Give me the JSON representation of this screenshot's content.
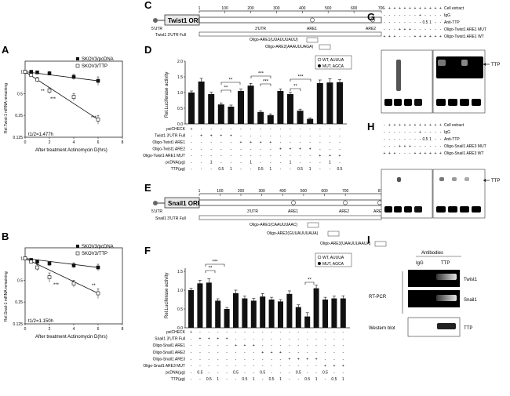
{
  "panels": {
    "A": {
      "letter": "A",
      "ylabel": "Rel.Twist-1 mRNA remaining",
      "xlabel": "After treatment Actinomycin D(hrs)",
      "legend": [
        "SKOV3/pcDNA",
        "SKOV3/TTP"
      ],
      "half_life": "t1/2=1.477h",
      "yticks": [
        "1",
        "0.5",
        "0.25",
        "0.125"
      ],
      "xticks": [
        "0",
        "2",
        "4",
        "6",
        "8"
      ],
      "stars": [
        "**",
        "***",
        "***"
      ]
    },
    "B": {
      "letter": "B",
      "ylabel": "Rel.Snail-1 mRNA remaining",
      "xlabel": "After treatment Actinomycin D(hrs)",
      "legend": [
        "SKOV3/pcDNA",
        "SKOV3/TTP"
      ],
      "half_life": "t1/2=1.150h",
      "yticks": [
        "1",
        "0.5",
        "0.25",
        "0.125"
      ],
      "xticks": [
        "0",
        "2",
        "4",
        "6",
        "8"
      ],
      "stars": [
        "***",
        "**"
      ]
    },
    "C": {
      "letter": "C",
      "orf": "Twist1 ORF",
      "five_utr": "5'UTR",
      "three_utr": "3'UTR",
      "scale": [
        "1",
        "100",
        "200",
        "300",
        "400",
        "500",
        "600",
        "706"
      ],
      "ares": [
        "ARE1",
        "ARE2"
      ],
      "full_label": "Twist1 3'UTR Full",
      "oligos": [
        "Oligo-ARE1(UUAUUUAUU)",
        "Oligo-ARE2(AAAUUUAGA)"
      ]
    },
    "D": {
      "letter": "D",
      "ylabel": "Rel.Luciferase activity",
      "legend": [
        "WT, AUUUA",
        "MUT, AGCA"
      ],
      "yticks": [
        "0.0",
        "0.5",
        "1.0",
        "1.5",
        "2.0"
      ],
      "row_labels": [
        "psiCHECK",
        "Twist1 3'UTR Full",
        "Oligo-Twist1 ARE1",
        "Oligo-Twist1 ARE2",
        "Oligo-Twist1 ARE1 MUT",
        "pcDNA(μg)",
        "TTP(μg)"
      ],
      "stars": [
        "**",
        "**",
        "***",
        "***",
        "**",
        "***"
      ]
    },
    "E": {
      "letter": "E",
      "orf": "Snail1 ORF",
      "five_utr": "5'UTR",
      "three_utr": "3'UTR",
      "scale": [
        "1",
        "100",
        "200",
        "300",
        "400",
        "500",
        "600",
        "700",
        "872"
      ],
      "ares": [
        "ARE1",
        "ARE2",
        "ARE3"
      ],
      "full_label": "Snail1 3'UTR Full",
      "oligos": [
        "Oligo-ARE1(CAAUUUAAC)",
        "Oligo-ARE2(GUUAUUUAUA)",
        "Oligo-ARE3(UAAUUUAAUA)"
      ]
    },
    "F": {
      "letter": "F",
      "ylabel": "Rel.Luciferase activity",
      "legend": [
        "WT, AUUUA",
        "MUT, AGCA"
      ],
      "yticks": [
        "0.0",
        "0.5",
        "1.0",
        "1.5"
      ],
      "row_labels": [
        "psiCHECK",
        "Snail1 3'UTR Full",
        "Oligo-Snail1 ARE1",
        "Oligo-Snail1 ARE2",
        "Oligo-Snail1 ARE3",
        "Oligo-Snail1 ARE3 MUT",
        "pcDNA(μg)",
        "TTP(μg)"
      ],
      "stars": [
        "**",
        "***",
        "**"
      ]
    },
    "G": {
      "letter": "G",
      "row_labels": [
        "Cell extract",
        "IgG",
        "Anti-TTP",
        "Oligo-Twist1 ARE1 MUT",
        "Oligo-Twist1 ARE1 WT"
      ],
      "doses": [
        "0.5",
        "1"
      ],
      "band_label": "TTP"
    },
    "H": {
      "letter": "H",
      "row_labels": [
        "Cell extract",
        "IgG",
        "Anti-TTP",
        "Oligo-Snail1 ARE3 MUT",
        "Oligo-Snail1 ARE3 WT"
      ],
      "doses": [
        "0.5",
        "1"
      ],
      "band_label": "TTP"
    },
    "I": {
      "letter": "I",
      "title": "Antibodies",
      "columns": [
        "IgG",
        "TTP"
      ],
      "method_labels": [
        "RT-PCR",
        "Western blot"
      ],
      "band_labels": [
        "Twist1",
        "Snail1",
        "TTP"
      ]
    }
  },
  "chart_data": [
    {
      "id": "A",
      "type": "scatter",
      "yscale": "log2",
      "xlabel": "After treatment Actinomycin D(hrs)",
      "ylabel": "Rel.Twist-1 mRNA remaining",
      "xlim": [
        0,
        8
      ],
      "ylim": [
        0.125,
        1.4
      ],
      "series": [
        {
          "name": "SKOV3/pcDNA",
          "x": [
            0,
            0.5,
            1,
            2,
            4,
            6
          ],
          "y": [
            1.0,
            1.0,
            0.98,
            0.95,
            0.85,
            0.75
          ],
          "err": [
            0.03,
            0.04,
            0.04,
            0.06,
            0.07,
            0.1
          ]
        },
        {
          "name": "SKOV3/TTP",
          "x": [
            0,
            0.5,
            1,
            2,
            4,
            6
          ],
          "y": [
            1.0,
            0.9,
            0.78,
            0.55,
            0.45,
            0.22
          ],
          "err": [
            0.03,
            0.04,
            0.06,
            0.05,
            0.05,
            0.03
          ]
        }
      ]
    },
    {
      "id": "B",
      "type": "scatter",
      "yscale": "log2",
      "xlabel": "After treatment Actinomycin D(hrs)",
      "ylabel": "Rel.Snail-1 mRNA remaining",
      "xlim": [
        0,
        8
      ],
      "ylim": [
        0.125,
        1.4
      ],
      "series": [
        {
          "name": "SKOV3/pcDNA",
          "x": [
            0,
            0.5,
            1,
            2,
            4,
            6
          ],
          "y": [
            1.0,
            0.95,
            0.9,
            0.85,
            0.8,
            0.75
          ],
          "err": [
            0.03,
            0.05,
            0.06,
            0.06,
            0.07,
            0.08
          ]
        },
        {
          "name": "SKOV3/TTP",
          "x": [
            0,
            0.5,
            1,
            2,
            4,
            6
          ],
          "y": [
            1.0,
            0.9,
            0.75,
            0.55,
            0.45,
            0.33
          ],
          "err": [
            0.03,
            0.06,
            0.07,
            0.08,
            0.05,
            0.05
          ]
        }
      ]
    },
    {
      "id": "D",
      "type": "bar",
      "ylabel": "Rel.Luciferase activity",
      "ylim": [
        0,
        2.0
      ],
      "values": [
        1.0,
        1.35,
        0.95,
        0.62,
        0.55,
        1.05,
        1.22,
        0.38,
        0.28,
        1.05,
        0.95,
        0.42,
        0.16,
        1.3,
        1.32,
        1.33
      ],
      "errors": [
        0.05,
        0.1,
        0.06,
        0.05,
        0.05,
        0.06,
        0.07,
        0.04,
        0.04,
        0.06,
        0.06,
        0.05,
        0.03,
        0.1,
        0.12,
        0.08
      ]
    },
    {
      "id": "F",
      "type": "bar",
      "ylabel": "Rel.Luciferase activity",
      "ylim": [
        0,
        1.5
      ],
      "values": [
        1.0,
        1.18,
        1.2,
        0.72,
        0.5,
        0.92,
        0.78,
        0.72,
        0.83,
        0.75,
        0.7,
        0.9,
        0.55,
        0.3,
        1.05,
        0.75,
        0.78,
        0.78
      ],
      "errors": [
        0.05,
        0.08,
        0.1,
        0.05,
        0.04,
        0.08,
        0.06,
        0.06,
        0.08,
        0.06,
        0.05,
        0.08,
        0.06,
        0.1,
        0.08,
        0.06,
        0.06,
        0.07
      ]
    }
  ]
}
